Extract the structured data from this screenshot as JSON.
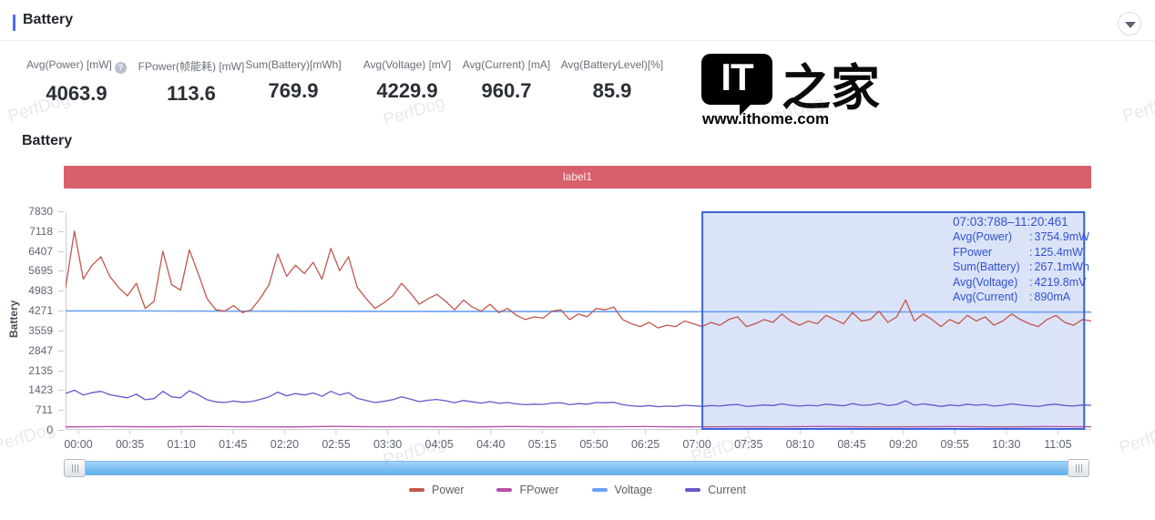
{
  "header": {
    "title": "Battery"
  },
  "watermark": {
    "text": "PerfDog"
  },
  "stats": [
    {
      "label": "Avg(Power) [mW]",
      "value": "4063.9",
      "help": true
    },
    {
      "label": "FPower(帧能耗) [mW]",
      "value": "113.6",
      "help": false
    },
    {
      "label": "Sum(Battery)[mWh]",
      "value": "769.9",
      "help": false
    },
    {
      "label": "Avg(Voltage) [mV]",
      "value": "4229.9",
      "help": false
    },
    {
      "label": "Avg(Current) [mA]",
      "value": "960.7",
      "help": false
    },
    {
      "label": "Avg(BatteryLevel)[%]",
      "value": "85.9",
      "help": false
    }
  ],
  "logo": {
    "it": "IT",
    "zhijia": "之家",
    "url": "www.ithome.com"
  },
  "section_title": "Battery",
  "label_bar": {
    "text": "label1",
    "color": "#d8606c"
  },
  "tooltip": {
    "range": "07:03:788–11:20:461",
    "rows": [
      {
        "label": "Avg(Power)",
        "value": "3754.9mW"
      },
      {
        "label": "FPower",
        "value": "125.4mW"
      },
      {
        "label": "Sum(Battery)",
        "value": "267.1mWh"
      },
      {
        "label": "Avg(Voltage)",
        "value": "4219.8mV"
      },
      {
        "label": "Avg(Current)",
        "value": "890mA"
      }
    ]
  },
  "chart_data": {
    "type": "line",
    "title": "Battery",
    "xlabel": "",
    "ylabel": "Battery",
    "ylim": [
      0,
      7830
    ],
    "grid": false,
    "legend_position": "bottom",
    "y_ticks": [
      7830,
      7118,
      6407,
      5695,
      4983,
      4271,
      3559,
      2847,
      2135,
      1423,
      711,
      0
    ],
    "x_ticks": [
      "00:00",
      "00:35",
      "01:10",
      "01:45",
      "02:20",
      "02:55",
      "03:30",
      "04:05",
      "04:40",
      "05:15",
      "05:50",
      "06:25",
      "07:00",
      "07:35",
      "08:10",
      "08:45",
      "09:20",
      "09:55",
      "10:30",
      "11:05"
    ],
    "x_tick_interval": "35min",
    "selection": {
      "range": "07:03:788–11:20:461",
      "left_frac": 0.62,
      "right_frac": 0.994,
      "fill": "rgba(92,128,224,0.22)",
      "border": "#3c64d6"
    },
    "series": [
      {
        "name": "Power",
        "unit": "mW",
        "color": "#c0574d",
        "values": [
          5100,
          7118,
          5400,
          5900,
          6200,
          5500,
          5100,
          4800,
          5250,
          4350,
          4600,
          6400,
          5200,
          5000,
          6450,
          5600,
          4700,
          4300,
          4250,
          4450,
          4200,
          4300,
          4700,
          5200,
          6300,
          5500,
          5900,
          5600,
          6000,
          5400,
          6500,
          5700,
          6200,
          5100,
          4700,
          4350,
          4550,
          4800,
          5250,
          4900,
          4500,
          4700,
          4850,
          4600,
          4300,
          4650,
          4400,
          4250,
          4500,
          4200,
          4350,
          4100,
          3950,
          4050,
          4000,
          4250,
          4300,
          3950,
          4150,
          4050,
          4350,
          4300,
          4400,
          3950,
          3800,
          3700,
          3850,
          3650,
          3750,
          3700,
          3900,
          3800,
          3700,
          3850,
          3750,
          3950,
          4050,
          3700,
          3800,
          3950,
          3850,
          4150,
          3900,
          3750,
          3900,
          3800,
          4100,
          3950,
          3800,
          4200,
          3900,
          3950,
          4250,
          3850,
          4050,
          4650,
          3900,
          4150,
          3950,
          3700,
          3950,
          3800,
          4100,
          3900,
          4050,
          3750,
          3900,
          4150,
          3950,
          3800,
          3700,
          3950,
          4100,
          3850,
          3750,
          3950,
          3900
        ]
      },
      {
        "name": "FPower",
        "unit": "mW",
        "color": "#b650a5",
        "values": [
          105,
          118,
          108,
          122,
          112,
          106,
          125,
          110,
          115,
          104,
          120,
          108,
          112,
          118,
          106,
          114,
          110,
          122,
          108,
          112,
          116,
          105,
          118,
          110
        ]
      },
      {
        "name": "Voltage",
        "unit": "mV",
        "color": "#6aa1f0",
        "values": [
          4262,
          4256,
          4251,
          4247,
          4243,
          4239,
          4236,
          4232,
          4229,
          4226,
          4223,
          4220
        ]
      },
      {
        "name": "Current",
        "unit": "mA",
        "color": "#6757c8",
        "values": [
          1300,
          1423,
          1250,
          1330,
          1380,
          1260,
          1200,
          1150,
          1280,
          1080,
          1120,
          1380,
          1180,
          1150,
          1400,
          1260,
          1080,
          1000,
          980,
          1030,
          990,
          1010,
          1090,
          1180,
          1350,
          1220,
          1300,
          1250,
          1320,
          1200,
          1380,
          1250,
          1330,
          1130,
          1050,
          980,
          1020,
          1080,
          1180,
          1100,
          1010,
          1060,
          1090,
          1040,
          970,
          1050,
          1000,
          960,
          1010,
          950,
          980,
          930,
          900,
          920,
          910,
          960,
          970,
          900,
          940,
          920,
          980,
          970,
          990,
          900,
          860,
          840,
          870,
          830,
          850,
          840,
          880,
          860,
          840,
          870,
          850,
          890,
          910,
          840,
          860,
          890,
          870,
          930,
          880,
          850,
          880,
          860,
          920,
          890,
          860,
          940,
          880,
          890,
          950,
          870,
          910,
          1040,
          880,
          930,
          890,
          840,
          890,
          860,
          920,
          880,
          910,
          850,
          880,
          930,
          890,
          860,
          840,
          890,
          920,
          870,
          850,
          890,
          880
        ]
      }
    ]
  }
}
